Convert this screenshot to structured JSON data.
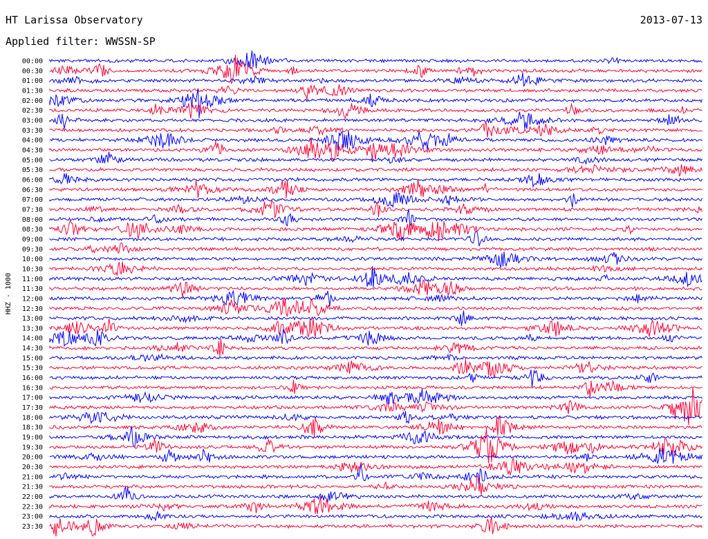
{
  "header": {
    "station": "HT Larissa Observatory",
    "date": "2013-07-13",
    "filter": "Applied filter: WWSSN-SP"
  },
  "chart_data": {
    "type": "line",
    "ylabel": "HHZ - 1000",
    "rows": [
      "00:00",
      "00:30",
      "01:00",
      "01:30",
      "02:00",
      "02:30",
      "03:00",
      "03:30",
      "04:00",
      "04:30",
      "05:00",
      "05:30",
      "06:00",
      "06:30",
      "07:00",
      "07:30",
      "08:00",
      "08:30",
      "09:00",
      "09:30",
      "10:00",
      "10:30",
      "11:00",
      "11:30",
      "12:00",
      "12:30",
      "13:00",
      "13:30",
      "14:00",
      "14:30",
      "15:00",
      "15:30",
      "16:00",
      "16:30",
      "17:00",
      "17:30",
      "18:00",
      "18:30",
      "19:00",
      "19:30",
      "20:00",
      "20:30",
      "21:00",
      "21:30",
      "22:00",
      "22:30",
      "23:00",
      "23:30"
    ],
    "colors": [
      "#0000ff",
      "#ff0033"
    ],
    "grid": false
  }
}
